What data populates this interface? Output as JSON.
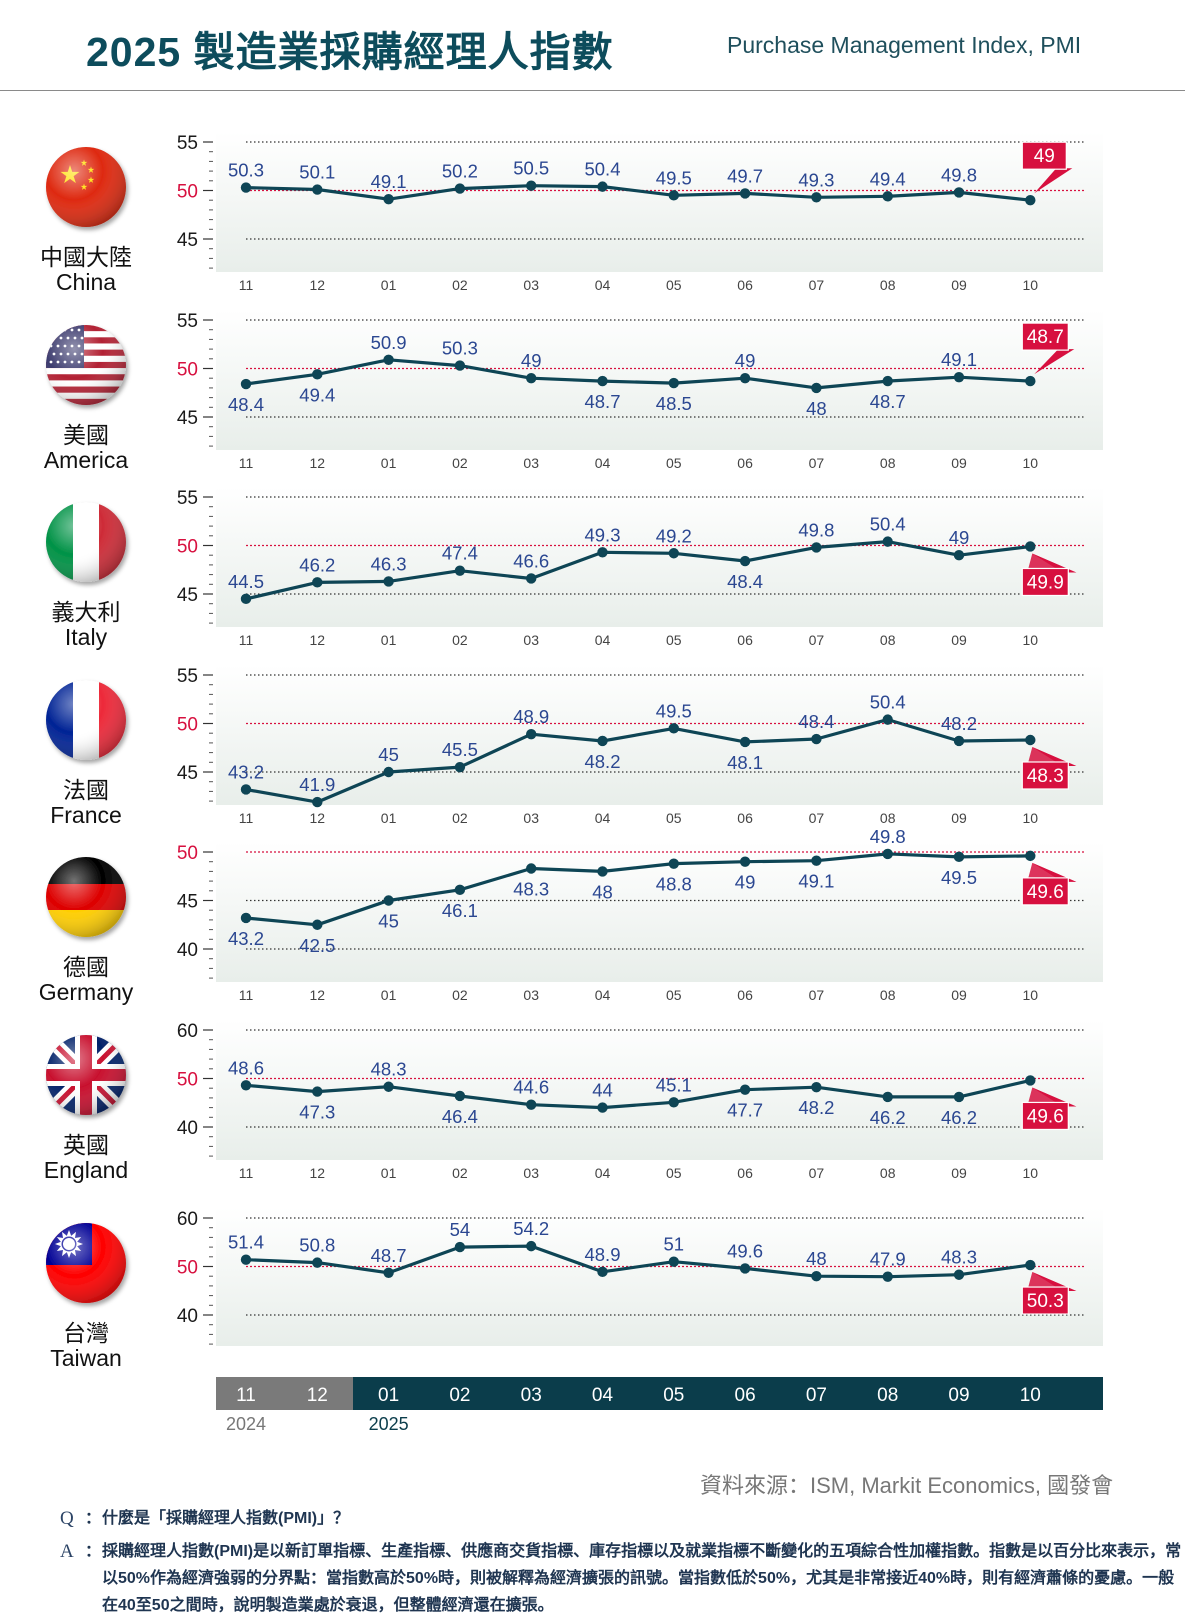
{
  "header": {
    "title": "2025 製造業採購經理人指數",
    "subtitle": "Purchase Management Index, PMI"
  },
  "months": [
    "11",
    "12",
    "01",
    "02",
    "03",
    "04",
    "05",
    "06",
    "07",
    "08",
    "09",
    "10"
  ],
  "timeline": {
    "months": [
      "11",
      "12",
      "01",
      "02",
      "03",
      "04",
      "05",
      "06",
      "07",
      "08",
      "09",
      "10"
    ],
    "year_2024": "2024",
    "year_2025": "2025"
  },
  "colors": {
    "line": "#0e4555",
    "accent_red": "#d7103f",
    "label_blue": "#2b4791",
    "tick_text": "#1a1a1a",
    "grey_bar": "#7a7a7a",
    "dark_bar": "#0b3d4b"
  },
  "chart_data": [
    {
      "type": "line",
      "country_zh": "中國大陸",
      "country_en": "China",
      "flag": "china-flag",
      "categories": [
        "11",
        "12",
        "01",
        "02",
        "03",
        "04",
        "05",
        "06",
        "07",
        "08",
        "09",
        "10"
      ],
      "values": [
        50.3,
        50.1,
        49.1,
        50.2,
        50.5,
        50.4,
        49.5,
        49.7,
        49.3,
        49.4,
        49.8,
        49
      ],
      "labels": [
        "50.3",
        "50.1",
        "49.1",
        "50.2",
        "50.5",
        "50.4",
        "49.5",
        "49.7",
        "49.3",
        "49.4",
        "49.8",
        "49"
      ],
      "yticks": [
        "55",
        "50",
        "45"
      ],
      "ylim": [
        42,
        57
      ],
      "reference": 50,
      "latest": "49"
    },
    {
      "type": "line",
      "country_zh": "美國",
      "country_en": "America",
      "flag": "usa-flag",
      "categories": [
        "11",
        "12",
        "01",
        "02",
        "03",
        "04",
        "05",
        "06",
        "07",
        "08",
        "09",
        "10"
      ],
      "values": [
        48.4,
        49.4,
        50.9,
        50.3,
        49,
        48.7,
        48.5,
        49,
        48,
        48.7,
        49.1,
        48.7
      ],
      "labels": [
        "48.4",
        "49.4",
        "50.9",
        "50.3",
        "49",
        "48.7",
        "48.5",
        "49",
        "48",
        "48.7",
        "49.1",
        "48.7"
      ],
      "yticks": [
        "55",
        "50",
        "45"
      ],
      "ylim": [
        42,
        57
      ],
      "reference": 50,
      "latest": "48.7"
    },
    {
      "type": "line",
      "country_zh": "義大利",
      "country_en": "Italy",
      "flag": "italy-flag",
      "categories": [
        "11",
        "12",
        "01",
        "02",
        "03",
        "04",
        "05",
        "06",
        "07",
        "08",
        "09",
        "10"
      ],
      "values": [
        44.5,
        46.2,
        46.3,
        47.4,
        46.6,
        49.3,
        49.2,
        48.4,
        49.8,
        50.4,
        49,
        49.9
      ],
      "labels": [
        "44.5",
        "46.2",
        "46.3",
        "47.4",
        "46.6",
        "49.3",
        "49.2",
        "48.4",
        "49.8",
        "50.4",
        "49",
        "49.9"
      ],
      "yticks": [
        "55",
        "50",
        "45"
      ],
      "ylim": [
        42,
        57
      ],
      "reference": 50,
      "latest": "49.9"
    },
    {
      "type": "line",
      "country_zh": "法國",
      "country_en": "France",
      "flag": "france-flag",
      "categories": [
        "11",
        "12",
        "01",
        "02",
        "03",
        "04",
        "05",
        "06",
        "07",
        "08",
        "09",
        "10"
      ],
      "values": [
        43.2,
        41.9,
        45,
        45.5,
        48.9,
        48.2,
        49.5,
        48.1,
        48.4,
        50.4,
        48.2,
        48.3
      ],
      "labels": [
        "43.2",
        "41.9",
        "45",
        "45.5",
        "48.9",
        "48.2",
        "49.5",
        "48.1",
        "48.4",
        "50.4",
        "48.2",
        "48.3"
      ],
      "yticks": [
        "55",
        "50",
        "45"
      ],
      "ylim": [
        42,
        57
      ],
      "reference": 50,
      "latest": "48.3"
    },
    {
      "type": "line",
      "country_zh": "德國",
      "country_en": "Germany",
      "flag": "germany-flag",
      "categories": [
        "11",
        "12",
        "01",
        "02",
        "03",
        "04",
        "05",
        "06",
        "07",
        "08",
        "09",
        "10"
      ],
      "values": [
        43.2,
        42.5,
        45,
        46.1,
        48.3,
        48,
        48.8,
        49,
        49.1,
        49.8,
        49.5,
        49.6
      ],
      "labels": [
        "43.2",
        "42.5",
        "45",
        "46.1",
        "48.3",
        "48",
        "48.8",
        "49",
        "49.1",
        "49.8",
        "49.5",
        "49.6"
      ],
      "yticks": [
        "50",
        "45",
        "40"
      ],
      "ylim": [
        37,
        52
      ],
      "reference": 50,
      "latest": "49.6"
    },
    {
      "type": "line",
      "country_zh": "英國",
      "country_en": "England",
      "flag": "uk-flag",
      "categories": [
        "11",
        "12",
        "01",
        "02",
        "03",
        "04",
        "05",
        "06",
        "07",
        "08",
        "09",
        "10"
      ],
      "values": [
        48.6,
        47.3,
        48.3,
        46.4,
        44.6,
        44,
        45.1,
        47.7,
        48.2,
        46.2,
        46.2,
        49.6
      ],
      "labels": [
        "48.6",
        "47.3",
        "48.3",
        "46.4",
        "44.6",
        "44",
        "45.1",
        "47.7",
        "48.2",
        "46.2",
        "46.2",
        "49.6"
      ],
      "yticks": [
        "60",
        "50",
        "40"
      ],
      "ylim": [
        34,
        64
      ],
      "reference": 50,
      "latest": "49.6"
    },
    {
      "type": "line",
      "country_zh": "台灣",
      "country_en": "Taiwan",
      "flag": "taiwan-flag",
      "categories": [
        "11",
        "12",
        "01",
        "02",
        "03",
        "04",
        "05",
        "06",
        "07",
        "08",
        "09",
        "10"
      ],
      "values": [
        51.4,
        50.8,
        48.7,
        54,
        54.2,
        48.9,
        51,
        49.6,
        48,
        47.9,
        48.3,
        50.3
      ],
      "labels": [
        "51.4",
        "50.8",
        "48.7",
        "54",
        "54.2",
        "48.9",
        "51",
        "49.6",
        "48",
        "47.9",
        "48.3",
        "50.3"
      ],
      "yticks": [
        "60",
        "50",
        "40"
      ],
      "ylim": [
        34,
        64
      ],
      "reference": 50,
      "latest": "50.3"
    }
  ],
  "footer": {
    "source": "資料來源：ISM, Markit Economics, 國發會",
    "q_mark": "Q",
    "a_mark": "A",
    "colon": "：",
    "question": "什麼是「採購經理人指數(PMI)」？",
    "answer": "採購經理人指數(PMI)是以新訂單指標、生產指標、供應商交貨指標、庫存指標以及就業指標不斷變化的五項綜合性加權指數。指數是以百分比來表示，常以50%作為經濟強弱的分界點：當指數高於50%時，則被解釋為經濟擴張的訊號。當指數低於50%，尤其是非常接近40%時，則有經濟蕭條的憂慮。一般在40至50之間時，說明製造業處於衰退，但整體經濟還在擴張。"
  }
}
